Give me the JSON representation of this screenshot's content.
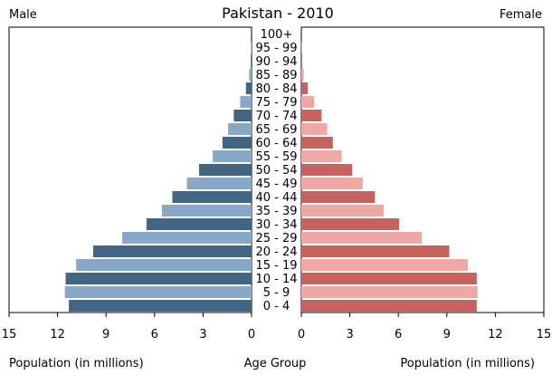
{
  "title": "Pakistan - 2010",
  "left_header": "Male",
  "right_header": "Female",
  "footer": {
    "left": "Population (in millions)",
    "center": "Age Group",
    "right": "Population (in millions)"
  },
  "colors": {
    "male_dark": "#436584",
    "male_light": "#87a8c9",
    "female_dark": "#c8625f",
    "female_light": "#f0a8a6"
  },
  "chart_data": {
    "type": "bar",
    "subtype": "population-pyramid",
    "title": "Pakistan - 2010",
    "xlabel": "Population (in millions)",
    "ylabel": "Age Group",
    "xlim": [
      0,
      15
    ],
    "ticks": [
      "15",
      "12",
      "9",
      "6",
      "3",
      "0"
    ],
    "ticks_right": [
      "0",
      "3",
      "6",
      "9",
      "12",
      "15"
    ],
    "categories": [
      "100+",
      "95 - 99",
      "90 - 94",
      "85 - 89",
      "80 - 84",
      "75 - 79",
      "70 - 74",
      "65 - 69",
      "60 - 64",
      "55 - 59",
      "50 - 54",
      "45 - 49",
      "40 - 44",
      "35 - 39",
      "30 - 34",
      "25 - 29",
      "20 - 24",
      "15 - 19",
      "10 - 14",
      "5 - 9",
      "0 - 4"
    ],
    "series": [
      {
        "name": "Male",
        "values": [
          0.0,
          0.02,
          0.05,
          0.15,
          0.35,
          0.7,
          1.1,
          1.45,
          1.8,
          2.4,
          3.25,
          4.0,
          4.9,
          5.55,
          6.5,
          8.0,
          9.8,
          10.85,
          11.5,
          11.55,
          11.3
        ]
      },
      {
        "name": "Female",
        "values": [
          0.0,
          0.02,
          0.05,
          0.15,
          0.4,
          0.8,
          1.25,
          1.6,
          1.95,
          2.5,
          3.15,
          3.8,
          4.55,
          5.1,
          6.05,
          7.45,
          9.15,
          10.3,
          10.85,
          10.9,
          10.85
        ]
      }
    ],
    "grid": false,
    "legend": "none"
  }
}
